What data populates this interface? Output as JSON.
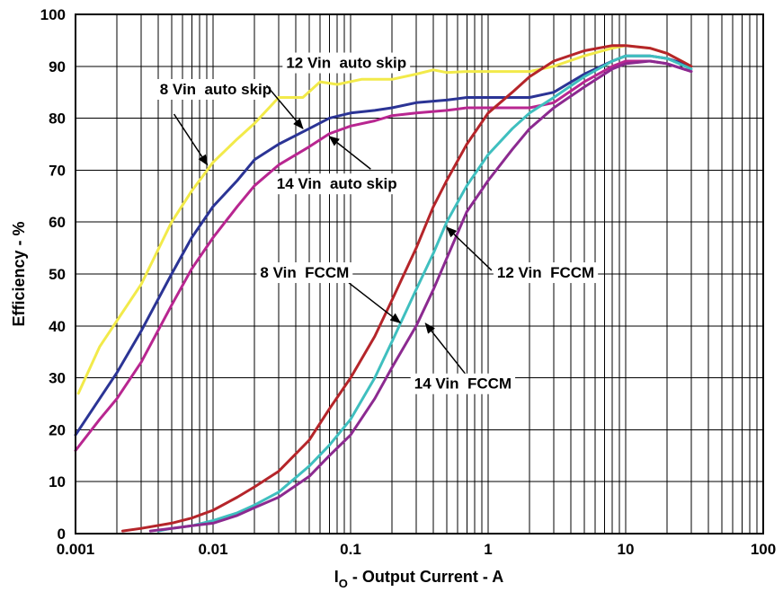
{
  "chart_data": {
    "type": "line",
    "xscale": "log",
    "xlim": [
      0.001,
      100
    ],
    "ylim": [
      0,
      100
    ],
    "grid": true,
    "xlabel_main": "I",
    "xlabel_sub": "O",
    "xlabel_rest": " - Output Current - A",
    "ylabel": "Efficiency - %",
    "x_ticks": [
      "0.001",
      "0.01",
      "0.1",
      "1",
      "10",
      "100"
    ],
    "y_ticks": [
      "0",
      "10",
      "20",
      "30",
      "40",
      "50",
      "60",
      "70",
      "80",
      "90",
      "100"
    ],
    "series": [
      {
        "name": "8 Vin auto skip",
        "color": "#f2ea4a",
        "points": [
          [
            0.00105,
            27
          ],
          [
            0.0015,
            36
          ],
          [
            0.002,
            41
          ],
          [
            0.003,
            48
          ],
          [
            0.005,
            60
          ],
          [
            0.007,
            66
          ],
          [
            0.01,
            71.5
          ],
          [
            0.015,
            76
          ],
          [
            0.02,
            79
          ],
          [
            0.03,
            84
          ],
          [
            0.045,
            84
          ],
          [
            0.06,
            87
          ],
          [
            0.08,
            86.5
          ],
          [
            0.12,
            87.5
          ],
          [
            0.2,
            87.5
          ],
          [
            0.3,
            88.5
          ],
          [
            0.4,
            89.3
          ],
          [
            0.5,
            88.8
          ],
          [
            0.7,
            89
          ],
          [
            1,
            89
          ],
          [
            2,
            89
          ],
          [
            3,
            90
          ],
          [
            5,
            92
          ],
          [
            8,
            93.5
          ],
          [
            10,
            94
          ],
          [
            15,
            93.5
          ],
          [
            20,
            92.5
          ],
          [
            30,
            90
          ]
        ]
      },
      {
        "name": "12 Vin auto skip",
        "color": "#2b3495",
        "points": [
          [
            0.001,
            19
          ],
          [
            0.0015,
            26
          ],
          [
            0.002,
            31
          ],
          [
            0.003,
            39
          ],
          [
            0.005,
            50
          ],
          [
            0.007,
            57
          ],
          [
            0.01,
            63
          ],
          [
            0.015,
            68
          ],
          [
            0.02,
            72
          ],
          [
            0.03,
            75
          ],
          [
            0.05,
            78
          ],
          [
            0.07,
            80
          ],
          [
            0.1,
            81
          ],
          [
            0.15,
            81.5
          ],
          [
            0.2,
            82
          ],
          [
            0.3,
            83
          ],
          [
            0.5,
            83.5
          ],
          [
            0.7,
            84
          ],
          [
            1,
            84
          ],
          [
            1.5,
            84
          ],
          [
            2,
            84
          ],
          [
            3,
            85
          ],
          [
            5,
            88.5
          ],
          [
            8,
            91
          ],
          [
            10,
            92
          ],
          [
            15,
            92
          ],
          [
            20,
            91.5
          ],
          [
            30,
            90
          ]
        ]
      },
      {
        "name": "14 Vin auto skip",
        "color": "#b82690",
        "points": [
          [
            0.001,
            16
          ],
          [
            0.0015,
            22
          ],
          [
            0.002,
            26
          ],
          [
            0.003,
            33
          ],
          [
            0.005,
            44
          ],
          [
            0.007,
            51
          ],
          [
            0.01,
            57
          ],
          [
            0.015,
            63
          ],
          [
            0.02,
            67
          ],
          [
            0.03,
            71
          ],
          [
            0.05,
            74.5
          ],
          [
            0.07,
            77
          ],
          [
            0.1,
            78.5
          ],
          [
            0.15,
            79.5
          ],
          [
            0.2,
            80.5
          ],
          [
            0.3,
            81
          ],
          [
            0.5,
            81.5
          ],
          [
            0.7,
            82
          ],
          [
            1,
            82
          ],
          [
            1.5,
            82
          ],
          [
            2,
            82
          ],
          [
            3,
            83
          ],
          [
            5,
            87
          ],
          [
            8,
            90
          ],
          [
            10,
            91
          ],
          [
            15,
            91
          ],
          [
            20,
            90.5
          ],
          [
            30,
            89
          ]
        ]
      },
      {
        "name": "8 Vin FCCM",
        "color": "#b5252a",
        "points": [
          [
            0.0022,
            0.5
          ],
          [
            0.003,
            1
          ],
          [
            0.005,
            2
          ],
          [
            0.007,
            3
          ],
          [
            0.01,
            4.5
          ],
          [
            0.015,
            7
          ],
          [
            0.02,
            9
          ],
          [
            0.03,
            12
          ],
          [
            0.05,
            18
          ],
          [
            0.07,
            24
          ],
          [
            0.1,
            30
          ],
          [
            0.15,
            38
          ],
          [
            0.2,
            45
          ],
          [
            0.3,
            55
          ],
          [
            0.4,
            63
          ],
          [
            0.5,
            68
          ],
          [
            0.7,
            75
          ],
          [
            1,
            81
          ],
          [
            1.5,
            85
          ],
          [
            2,
            88
          ],
          [
            3,
            91
          ],
          [
            5,
            93
          ],
          [
            8,
            94
          ],
          [
            10,
            94
          ],
          [
            15,
            93.5
          ],
          [
            20,
            92.5
          ],
          [
            30,
            90
          ]
        ]
      },
      {
        "name": "12 Vin FCCM",
        "color": "#3fbfbf",
        "points": [
          [
            0.004,
            0.5
          ],
          [
            0.005,
            1
          ],
          [
            0.007,
            1.5
          ],
          [
            0.01,
            2.5
          ],
          [
            0.015,
            4
          ],
          [
            0.02,
            5.5
          ],
          [
            0.03,
            8
          ],
          [
            0.05,
            13
          ],
          [
            0.07,
            17
          ],
          [
            0.1,
            22
          ],
          [
            0.15,
            30
          ],
          [
            0.2,
            37
          ],
          [
            0.3,
            47
          ],
          [
            0.4,
            54
          ],
          [
            0.5,
            60
          ],
          [
            0.7,
            67
          ],
          [
            1,
            73
          ],
          [
            1.5,
            78
          ],
          [
            2,
            81
          ],
          [
            3,
            84
          ],
          [
            5,
            88
          ],
          [
            8,
            91
          ],
          [
            10,
            92
          ],
          [
            15,
            92
          ],
          [
            20,
            91.5
          ],
          [
            30,
            89.5
          ]
        ]
      },
      {
        "name": "14 Vin FCCM",
        "color": "#8c2a90",
        "points": [
          [
            0.0035,
            0.5
          ],
          [
            0.005,
            1
          ],
          [
            0.007,
            1.5
          ],
          [
            0.01,
            2
          ],
          [
            0.015,
            3.5
          ],
          [
            0.02,
            5
          ],
          [
            0.03,
            7
          ],
          [
            0.05,
            11
          ],
          [
            0.07,
            15
          ],
          [
            0.1,
            19
          ],
          [
            0.15,
            26
          ],
          [
            0.2,
            32
          ],
          [
            0.3,
            40
          ],
          [
            0.4,
            47
          ],
          [
            0.5,
            53
          ],
          [
            0.7,
            62
          ],
          [
            1,
            68
          ],
          [
            1.5,
            74
          ],
          [
            2,
            78
          ],
          [
            3,
            82
          ],
          [
            5,
            86
          ],
          [
            8,
            89.5
          ],
          [
            10,
            90.5
          ],
          [
            15,
            91
          ],
          [
            20,
            90.5
          ],
          [
            30,
            89
          ]
        ]
      }
    ],
    "annotations": [
      {
        "text": "8 Vin  auto skip",
        "label_x": 0.0041,
        "label_y": 84.6,
        "arrow_from": [
          0.0052,
          80.8
        ],
        "arrow_to": [
          0.0091,
          71
        ]
      },
      {
        "text": "12 Vin  auto skip",
        "label_x": 0.034,
        "label_y": 89.7,
        "arrow_from": [
          0.0245,
          86.3
        ],
        "arrow_to": [
          0.045,
          78
        ]
      },
      {
        "text": "14 Vin  auto skip",
        "label_x": 0.029,
        "label_y": 66.4,
        "arrow_from": [
          0.14,
          70.2
        ],
        "arrow_to": [
          0.07,
          76.5
        ]
      },
      {
        "text": "8 Vin  FCCM",
        "label_x": 0.022,
        "label_y": 49.3,
        "arrow_from": [
          0.097,
          48.3
        ],
        "arrow_to": [
          0.23,
          40.6
        ]
      },
      {
        "text": "12 Vin  FCCM",
        "label_x": 1.16,
        "label_y": 49.3,
        "arrow_from": [
          1.06,
          50.7
        ],
        "arrow_to": [
          0.5,
          59
        ]
      },
      {
        "text": "14 Vin  FCCM",
        "label_x": 0.29,
        "label_y": 27.9,
        "arrow_from": [
          0.75,
          29.4
        ],
        "arrow_to": [
          0.35,
          40.5
        ]
      }
    ]
  }
}
